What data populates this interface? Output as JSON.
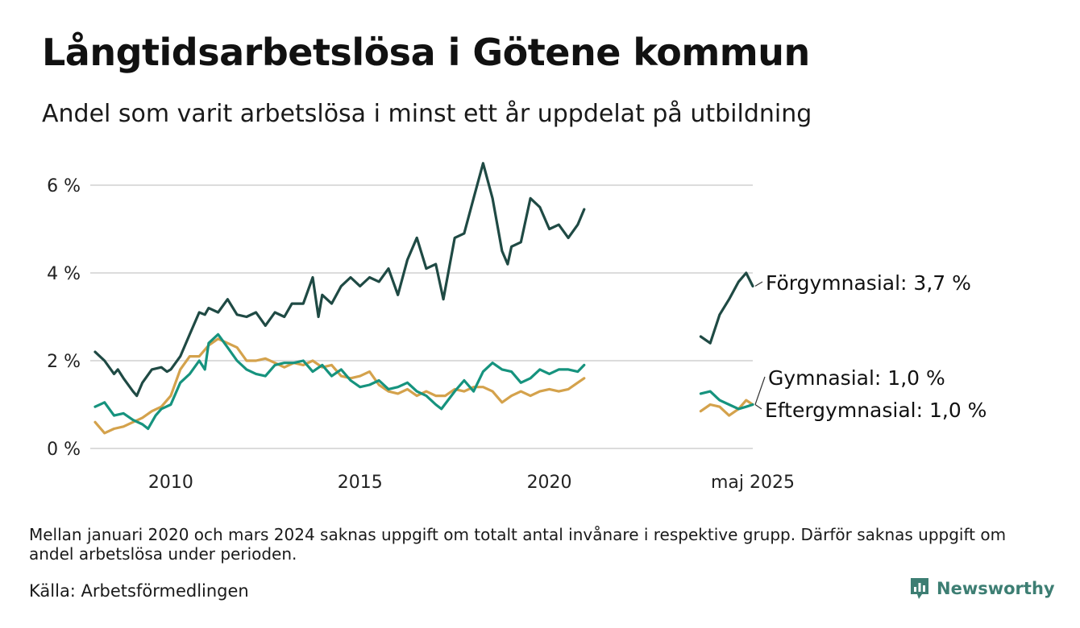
{
  "title": "Långtidsarbetslösa i Götene kommun",
  "subtitle": "Andel som varit arbetslösa i minst ett år uppdelat på utbildning",
  "note": "Mellan januari 2020 och mars 2024 saknas uppgift om totalt antal invånare i respektive grupp. Därför saknas uppgift om andel arbetslösa under perioden.",
  "source": "Källa: Arbetsförmedlingen",
  "brand": {
    "name": "Newsworthy",
    "icon": "newsworthy-logo-icon",
    "color": "#3d7e73"
  },
  "chart_data": {
    "type": "line",
    "y_ticks": [
      "0 %",
      "2 %",
      "4 %",
      "6 %"
    ],
    "y_tick_values": [
      0,
      2,
      4,
      6
    ],
    "ylim": [
      0,
      6.5
    ],
    "x_ticks": [
      "2010",
      "2015",
      "2020",
      "maj 2025"
    ],
    "x_tick_values": [
      2010,
      2015,
      2020,
      2025.375
    ],
    "gridlines": true,
    "series": [
      {
        "name": "Förgymnasial",
        "label": "Förgymnasial: 3,7 %",
        "color": "#1f4a44",
        "segments": [
          [
            [
              2008.0,
              2.2
            ],
            [
              2008.25,
              2.0
            ],
            [
              2008.5,
              1.7
            ],
            [
              2008.6,
              1.8
            ],
            [
              2008.75,
              1.6
            ],
            [
              2009.0,
              1.3
            ],
            [
              2009.1,
              1.2
            ],
            [
              2009.25,
              1.5
            ],
            [
              2009.5,
              1.8
            ],
            [
              2009.75,
              1.85
            ],
            [
              2009.9,
              1.75
            ],
            [
              2010.0,
              1.8
            ],
            [
              2010.25,
              2.1
            ],
            [
              2010.5,
              2.6
            ],
            [
              2010.75,
              3.1
            ],
            [
              2010.9,
              3.05
            ],
            [
              2011.0,
              3.2
            ],
            [
              2011.25,
              3.1
            ],
            [
              2011.5,
              3.4
            ],
            [
              2011.75,
              3.05
            ],
            [
              2012.0,
              3.0
            ],
            [
              2012.25,
              3.1
            ],
            [
              2012.5,
              2.8
            ],
            [
              2012.75,
              3.1
            ],
            [
              2013.0,
              3.0
            ],
            [
              2013.2,
              3.3
            ],
            [
              2013.5,
              3.3
            ],
            [
              2013.75,
              3.9
            ],
            [
              2013.9,
              3.0
            ],
            [
              2014.0,
              3.5
            ],
            [
              2014.25,
              3.3
            ],
            [
              2014.5,
              3.7
            ],
            [
              2014.75,
              3.9
            ],
            [
              2015.0,
              3.7
            ],
            [
              2015.25,
              3.9
            ],
            [
              2015.5,
              3.8
            ],
            [
              2015.75,
              4.1
            ],
            [
              2016.0,
              3.5
            ],
            [
              2016.25,
              4.3
            ],
            [
              2016.5,
              4.8
            ],
            [
              2016.75,
              4.1
            ],
            [
              2017.0,
              4.2
            ],
            [
              2017.2,
              3.4
            ],
            [
              2017.5,
              4.8
            ],
            [
              2017.75,
              4.9
            ],
            [
              2018.0,
              5.7
            ],
            [
              2018.25,
              6.5
            ],
            [
              2018.5,
              5.7
            ],
            [
              2018.75,
              4.5
            ],
            [
              2018.9,
              4.2
            ],
            [
              2019.0,
              4.6
            ],
            [
              2019.25,
              4.7
            ],
            [
              2019.5,
              5.7
            ],
            [
              2019.75,
              5.5
            ],
            [
              2020.0,
              5.0
            ],
            [
              2020.25,
              5.1
            ],
            [
              2020.5,
              4.8
            ],
            [
              2020.75,
              5.1
            ],
            [
              2020.92,
              5.45
            ]
          ],
          [
            [
              2024.0,
              2.55
            ],
            [
              2024.25,
              2.4
            ],
            [
              2024.5,
              3.05
            ],
            [
              2024.75,
              3.4
            ],
            [
              2025.0,
              3.8
            ],
            [
              2025.2,
              4.0
            ],
            [
              2025.375,
              3.7
            ]
          ]
        ]
      },
      {
        "name": "Gymnasial",
        "label": "Gymnasial: 1,0 %",
        "color": "#16937e",
        "segments": [
          [
            [
              2008.0,
              0.95
            ],
            [
              2008.25,
              1.05
            ],
            [
              2008.5,
              0.75
            ],
            [
              2008.75,
              0.8
            ],
            [
              2009.0,
              0.65
            ],
            [
              2009.25,
              0.55
            ],
            [
              2009.4,
              0.45
            ],
            [
              2009.6,
              0.75
            ],
            [
              2009.75,
              0.9
            ],
            [
              2010.0,
              1.0
            ],
            [
              2010.25,
              1.5
            ],
            [
              2010.5,
              1.7
            ],
            [
              2010.75,
              2.0
            ],
            [
              2010.9,
              1.8
            ],
            [
              2011.0,
              2.4
            ],
            [
              2011.25,
              2.6
            ],
            [
              2011.5,
              2.3
            ],
            [
              2011.75,
              2.0
            ],
            [
              2012.0,
              1.8
            ],
            [
              2012.25,
              1.7
            ],
            [
              2012.5,
              1.65
            ],
            [
              2012.75,
              1.9
            ],
            [
              2013.0,
              1.95
            ],
            [
              2013.25,
              1.95
            ],
            [
              2013.5,
              2.0
            ],
            [
              2013.75,
              1.75
            ],
            [
              2014.0,
              1.9
            ],
            [
              2014.25,
              1.65
            ],
            [
              2014.5,
              1.8
            ],
            [
              2014.75,
              1.55
            ],
            [
              2015.0,
              1.4
            ],
            [
              2015.25,
              1.45
            ],
            [
              2015.5,
              1.55
            ],
            [
              2015.75,
              1.35
            ],
            [
              2016.0,
              1.4
            ],
            [
              2016.25,
              1.5
            ],
            [
              2016.5,
              1.3
            ],
            [
              2016.75,
              1.2
            ],
            [
              2017.0,
              1.0
            ],
            [
              2017.15,
              0.9
            ],
            [
              2017.5,
              1.3
            ],
            [
              2017.75,
              1.55
            ],
            [
              2018.0,
              1.3
            ],
            [
              2018.25,
              1.75
            ],
            [
              2018.5,
              1.95
            ],
            [
              2018.75,
              1.8
            ],
            [
              2019.0,
              1.75
            ],
            [
              2019.25,
              1.5
            ],
            [
              2019.5,
              1.6
            ],
            [
              2019.75,
              1.8
            ],
            [
              2020.0,
              1.7
            ],
            [
              2020.25,
              1.8
            ],
            [
              2020.5,
              1.8
            ],
            [
              2020.75,
              1.75
            ],
            [
              2020.92,
              1.9
            ]
          ],
          [
            [
              2024.0,
              1.25
            ],
            [
              2024.25,
              1.3
            ],
            [
              2024.5,
              1.1
            ],
            [
              2024.75,
              1.0
            ],
            [
              2025.0,
              0.9
            ],
            [
              2025.2,
              0.95
            ],
            [
              2025.375,
              1.0
            ]
          ]
        ]
      },
      {
        "name": "Eftergymnasial",
        "label": "Eftergymnasial: 1,0 %",
        "color": "#d4a24c",
        "segments": [
          [
            [
              2008.0,
              0.6
            ],
            [
              2008.25,
              0.35
            ],
            [
              2008.5,
              0.45
            ],
            [
              2008.75,
              0.5
            ],
            [
              2009.0,
              0.6
            ],
            [
              2009.25,
              0.7
            ],
            [
              2009.5,
              0.85
            ],
            [
              2009.75,
              0.95
            ],
            [
              2010.0,
              1.2
            ],
            [
              2010.25,
              1.8
            ],
            [
              2010.5,
              2.1
            ],
            [
              2010.75,
              2.1
            ],
            [
              2011.0,
              2.35
            ],
            [
              2011.25,
              2.5
            ],
            [
              2011.5,
              2.4
            ],
            [
              2011.75,
              2.3
            ],
            [
              2012.0,
              2.0
            ],
            [
              2012.25,
              2.0
            ],
            [
              2012.5,
              2.05
            ],
            [
              2012.75,
              1.95
            ],
            [
              2013.0,
              1.85
            ],
            [
              2013.25,
              1.95
            ],
            [
              2013.5,
              1.9
            ],
            [
              2013.75,
              2.0
            ],
            [
              2014.0,
              1.85
            ],
            [
              2014.25,
              1.9
            ],
            [
              2014.5,
              1.65
            ],
            [
              2014.75,
              1.6
            ],
            [
              2015.0,
              1.65
            ],
            [
              2015.25,
              1.75
            ],
            [
              2015.5,
              1.45
            ],
            [
              2015.75,
              1.3
            ],
            [
              2016.0,
              1.25
            ],
            [
              2016.25,
              1.35
            ],
            [
              2016.5,
              1.2
            ],
            [
              2016.75,
              1.3
            ],
            [
              2017.0,
              1.2
            ],
            [
              2017.25,
              1.2
            ],
            [
              2017.5,
              1.35
            ],
            [
              2017.75,
              1.3
            ],
            [
              2018.0,
              1.4
            ],
            [
              2018.25,
              1.4
            ],
            [
              2018.5,
              1.3
            ],
            [
              2018.75,
              1.05
            ],
            [
              2019.0,
              1.2
            ],
            [
              2019.25,
              1.3
            ],
            [
              2019.5,
              1.2
            ],
            [
              2019.75,
              1.3
            ],
            [
              2020.0,
              1.35
            ],
            [
              2020.25,
              1.3
            ],
            [
              2020.5,
              1.35
            ],
            [
              2020.75,
              1.5
            ],
            [
              2020.92,
              1.6
            ]
          ],
          [
            [
              2024.0,
              0.85
            ],
            [
              2024.25,
              1.0
            ],
            [
              2024.5,
              0.95
            ],
            [
              2024.75,
              0.75
            ],
            [
              2025.0,
              0.9
            ],
            [
              2025.2,
              1.1
            ],
            [
              2025.375,
              1.0
            ]
          ]
        ]
      }
    ]
  }
}
